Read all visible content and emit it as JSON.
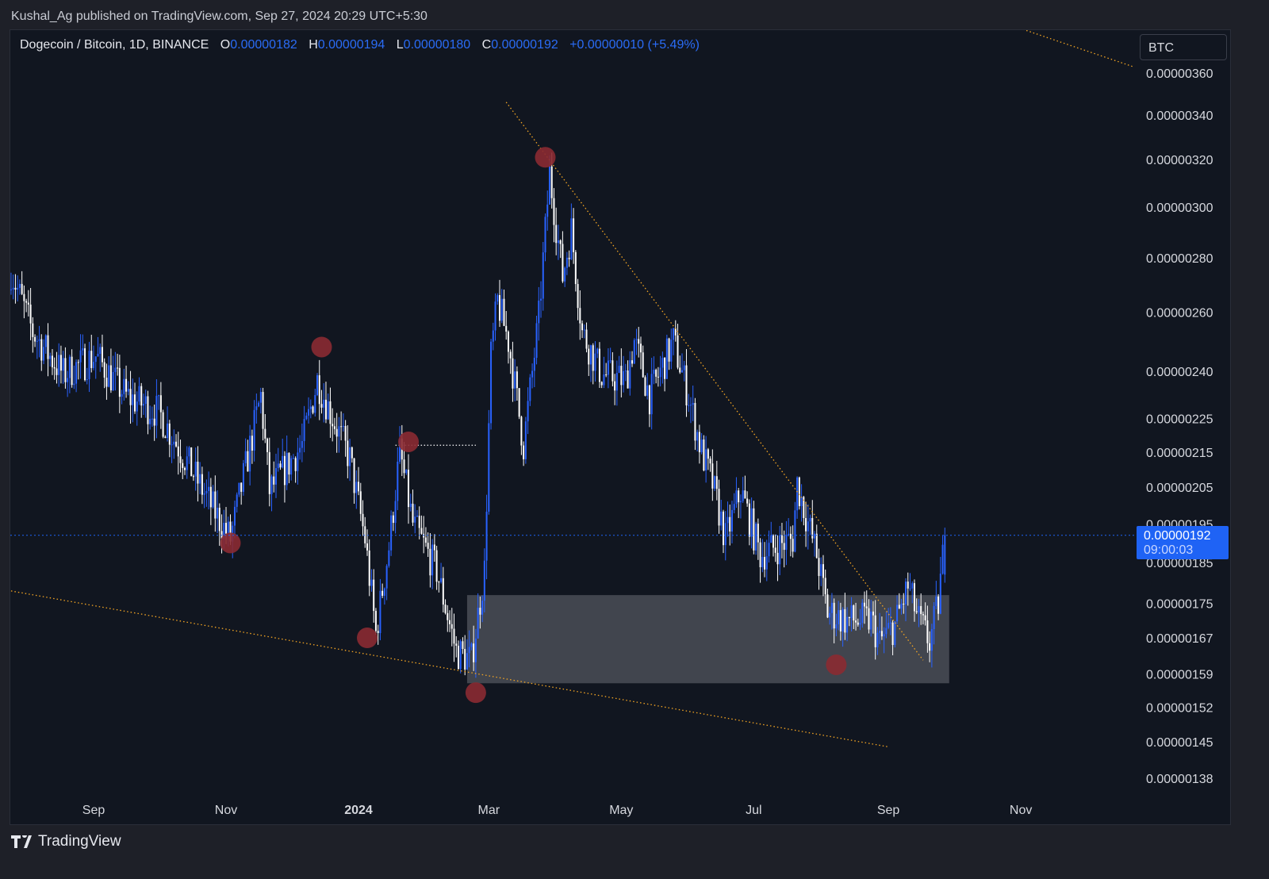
{
  "header": {
    "published": "Kushal_Ag published on TradingView.com, Sep 27, 2024 20:29 UTC+5:30"
  },
  "legend": {
    "symbol": "Dogecoin / Bitcoin, 1D, BINANCE",
    "o_label": "O",
    "o": "0.00000182",
    "h_label": "H",
    "h": "0.00000194",
    "l_label": "L",
    "l": "0.00000180",
    "c_label": "C",
    "c": "0.00000192",
    "change": "+0.00000010 (+5.49%)"
  },
  "currency_button": "BTC",
  "last_price": {
    "price": "0.00000192",
    "countdown": "09:00:03"
  },
  "footer": {
    "brand": "TradingView"
  },
  "colors": {
    "up": "#2962ff",
    "down": "#ffffff",
    "background": "#111620",
    "trendline": "#f5a623",
    "marker": "#8b2a32",
    "zone": "#4a4d57",
    "last_price": "#1f63f5"
  },
  "chart_data": {
    "type": "candlestick",
    "interval": "1D",
    "y_scale": "log",
    "y_unit": "BTC (×1e-8)",
    "yticks": [
      "0.00000360",
      "0.00000340",
      "0.00000320",
      "0.00000300",
      "0.00000280",
      "0.00000260",
      "0.00000240",
      "0.00000225",
      "0.00000215",
      "0.00000205",
      "0.00000195",
      "0.00000185",
      "0.00000175",
      "0.00000167",
      "0.00000159",
      "0.00000152",
      "0.00000145",
      "0.00000138"
    ],
    "xticks": [
      {
        "label": "Sep",
        "date": "2023-09-01"
      },
      {
        "label": "Nov",
        "date": "2023-11-01"
      },
      {
        "label": "2024",
        "date": "2024-01-01",
        "bold": true
      },
      {
        "label": "Mar",
        "date": "2024-03-01"
      },
      {
        "label": "May",
        "date": "2024-05-01"
      },
      {
        "label": "Jul",
        "date": "2024-07-01"
      },
      {
        "label": "Sep",
        "date": "2024-09-01"
      },
      {
        "label": "Nov",
        "date": "2024-11-01"
      }
    ],
    "approx_closes_1e8": [
      [
        "2023-07-25",
        275
      ],
      [
        "2023-08-04",
        253
      ],
      [
        "2023-08-18",
        239
      ],
      [
        "2023-09-02",
        245
      ],
      [
        "2023-09-16",
        232
      ],
      [
        "2023-10-01",
        227
      ],
      [
        "2023-10-16",
        210
      ],
      [
        "2023-10-26",
        199
      ],
      [
        "2023-11-03",
        191
      ],
      [
        "2023-11-17",
        232
      ],
      [
        "2023-11-21",
        204
      ],
      [
        "2023-12-06",
        217
      ],
      [
        "2023-12-13",
        237
      ],
      [
        "2023-12-28",
        213
      ],
      [
        "2024-01-04",
        191
      ],
      [
        "2024-01-09",
        168
      ],
      [
        "2024-01-15",
        189
      ],
      [
        "2024-01-20",
        215
      ],
      [
        "2024-01-26",
        195
      ],
      [
        "2024-02-06",
        183
      ],
      [
        "2024-02-15",
        164
      ],
      [
        "2024-02-22",
        162
      ],
      [
        "2024-02-28",
        183
      ],
      [
        "2024-03-02",
        245
      ],
      [
        "2024-03-05",
        264
      ],
      [
        "2024-03-10",
        250
      ],
      [
        "2024-03-17",
        217
      ],
      [
        "2024-03-24",
        258
      ],
      [
        "2024-03-29",
        314
      ],
      [
        "2024-04-04",
        273
      ],
      [
        "2024-04-08",
        291
      ],
      [
        "2024-04-13",
        253
      ],
      [
        "2024-04-22",
        239
      ],
      [
        "2024-05-03",
        237
      ],
      [
        "2024-05-07",
        250
      ],
      [
        "2024-05-14",
        232
      ],
      [
        "2024-05-25",
        250
      ],
      [
        "2024-06-01",
        232
      ],
      [
        "2024-06-07",
        215
      ],
      [
        "2024-06-12",
        206
      ],
      [
        "2024-06-18",
        191
      ],
      [
        "2024-06-25",
        204
      ],
      [
        "2024-07-04",
        187
      ],
      [
        "2024-07-19",
        191
      ],
      [
        "2024-07-21",
        206
      ],
      [
        "2024-07-30",
        187
      ],
      [
        "2024-08-04",
        173
      ],
      [
        "2024-08-13",
        171
      ],
      [
        "2024-08-24",
        171
      ],
      [
        "2024-08-28",
        166
      ],
      [
        "2024-09-04",
        170
      ],
      [
        "2024-09-10",
        179
      ],
      [
        "2024-09-15",
        171
      ],
      [
        "2024-09-20",
        166
      ],
      [
        "2024-09-24",
        175
      ],
      [
        "2024-09-27",
        192
      ]
    ],
    "last": {
      "open": 182,
      "high": 194,
      "low": 180,
      "close": 192
    },
    "drawings": {
      "trendlines": [
        {
          "from": [
            "2023-07-25",
            178
          ],
          "to": [
            "2024-09-01",
            144
          ]
        },
        {
          "from": [
            "2024-03-09",
            346
          ],
          "to": [
            "2024-09-17",
            162
          ]
        },
        {
          "from": [
            "2024-11-02",
            382
          ],
          "to": [
            "2024-12-23",
            363
          ]
        }
      ],
      "zone": {
        "from": "2024-02-20",
        "to": "2024-09-29",
        "high": 177,
        "low": 157
      },
      "hline": {
        "from": "2024-01-18",
        "to": "2024-02-24",
        "price": 217
      },
      "markers": [
        [
          "2023-11-03",
          190
        ],
        [
          "2023-12-15",
          248
        ],
        [
          "2024-01-05",
          167
        ],
        [
          "2024-01-24",
          218
        ],
        [
          "2024-02-24",
          155
        ],
        [
          "2024-03-27",
          321
        ],
        [
          "2024-08-08",
          161
        ]
      ]
    }
  }
}
